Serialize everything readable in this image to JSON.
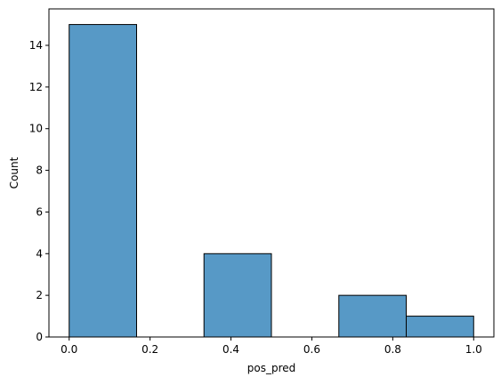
{
  "chart_data": {
    "type": "bar",
    "title": "",
    "xlabel": "pos_pred",
    "ylabel": "Count",
    "xlim": [
      -0.05,
      1.05
    ],
    "ylim": [
      0,
      15.75
    ],
    "grid": false,
    "bar_color": "#5799c6",
    "edge_color": "#000000",
    "bins": [
      {
        "x0": 0.0,
        "x1": 0.1667,
        "count": 15
      },
      {
        "x0": 0.1667,
        "x1": 0.3333,
        "count": 0
      },
      {
        "x0": 0.3333,
        "x1": 0.5,
        "count": 4
      },
      {
        "x0": 0.5,
        "x1": 0.6667,
        "count": 0
      },
      {
        "x0": 0.6667,
        "x1": 0.8333,
        "count": 2
      },
      {
        "x0": 0.8333,
        "x1": 1.0,
        "count": 1
      }
    ],
    "x_ticks": [
      {
        "value": 0.0,
        "label": "0.0"
      },
      {
        "value": 0.2,
        "label": "0.2"
      },
      {
        "value": 0.4,
        "label": "0.4"
      },
      {
        "value": 0.6,
        "label": "0.6"
      },
      {
        "value": 0.8,
        "label": "0.8"
      },
      {
        "value": 1.0,
        "label": "1.0"
      }
    ],
    "y_ticks": [
      {
        "value": 0,
        "label": "0"
      },
      {
        "value": 2,
        "label": "2"
      },
      {
        "value": 4,
        "label": "4"
      },
      {
        "value": 6,
        "label": "6"
      },
      {
        "value": 8,
        "label": "8"
      },
      {
        "value": 10,
        "label": "10"
      },
      {
        "value": 12,
        "label": "12"
      },
      {
        "value": 14,
        "label": "14"
      }
    ]
  }
}
